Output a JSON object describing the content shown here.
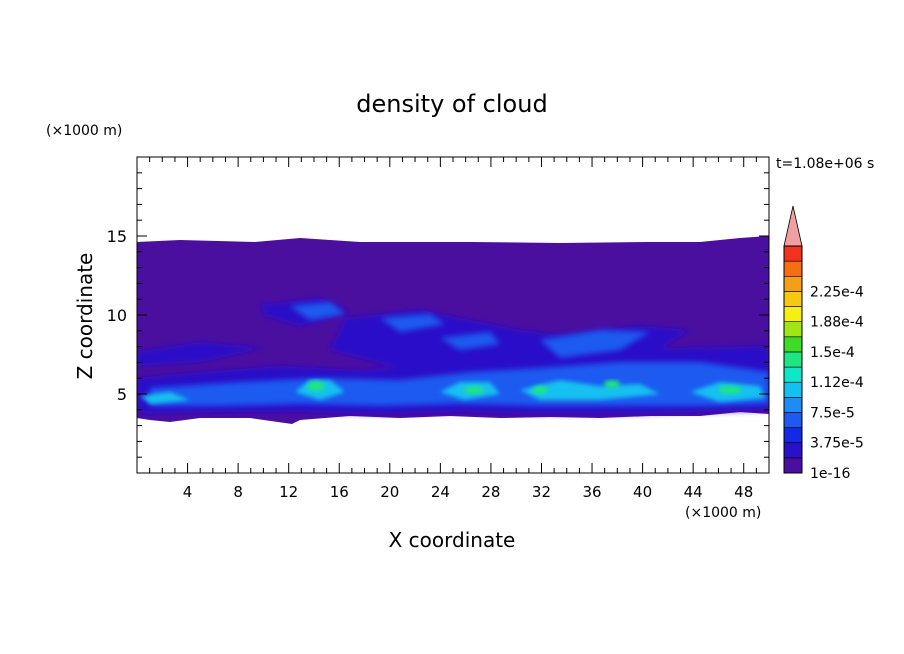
{
  "chart_data": {
    "type": "heatmap",
    "title": "density of cloud",
    "time_label": "t=1.08e+06 s",
    "xlabel": "X coordinate",
    "ylabel": "Z coordinate",
    "x_unit": "(×1000 m)",
    "y_unit": "(×1000 m)",
    "xlim": [
      0,
      50
    ],
    "ylim": [
      0,
      20
    ],
    "x_ticks": [
      "4",
      "8",
      "12",
      "16",
      "20",
      "24",
      "28",
      "32",
      "36",
      "40",
      "44",
      "48"
    ],
    "y_ticks": [
      "5",
      "10",
      "15"
    ],
    "colorbar": {
      "labels": [
        "2.25e-4",
        "1.88e-4",
        "1.5e-4",
        "1.12e-4",
        "7.5e-5",
        "3.75e-5",
        "1e-16"
      ],
      "colors": [
        "#4b0fa0",
        "#2a10c8",
        "#1428e6",
        "#1e5af0",
        "#1e8cf5",
        "#14c0f0",
        "#10e6c8",
        "#1ee682",
        "#3cdc28",
        "#a0e614",
        "#f5f014",
        "#f5c814",
        "#f5a014",
        "#f56e14",
        "#f0321e",
        "#f0a0a0"
      ]
    },
    "cloud_layer_top_z": 14.6,
    "cloud_layer_bottom_z": 3.5
  }
}
